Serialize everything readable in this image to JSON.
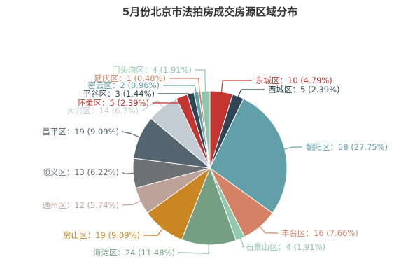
{
  "chart_data": {
    "type": "pie",
    "title": "5月份北京市法拍房成交房源区域分布",
    "slices": [
      {
        "name": "东城区",
        "value": 10,
        "percent": "4.79%",
        "color": "#c23531"
      },
      {
        "name": "西城区",
        "value": 5,
        "percent": "2.39%",
        "color": "#2f4554"
      },
      {
        "name": "朝阳区",
        "value": 58,
        "percent": "27.75%",
        "color": "#61a0a8"
      },
      {
        "name": "丰台区",
        "value": 16,
        "percent": "7.66%",
        "color": "#d48265"
      },
      {
        "name": "石景山区",
        "value": 4,
        "percent": "1.91%",
        "color": "#91c7ae"
      },
      {
        "name": "海淀区",
        "value": 24,
        "percent": "11.48%",
        "color": "#749f83"
      },
      {
        "name": "房山区",
        "value": 19,
        "percent": "9.09%",
        "color": "#ca8622"
      },
      {
        "name": "通州区",
        "value": 12,
        "percent": "5.74%",
        "color": "#bda29a"
      },
      {
        "name": "顺义区",
        "value": 13,
        "percent": "6.22%",
        "color": "#6e7074"
      },
      {
        "name": "昌平区",
        "value": 19,
        "percent": "9.09%",
        "color": "#546570"
      },
      {
        "name": "大兴区",
        "value": 14,
        "percent": "6.7%",
        "color": "#c4ccd3"
      },
      {
        "name": "怀柔区",
        "value": 5,
        "percent": "2.39%",
        "color": "#c23531"
      },
      {
        "name": "平谷区",
        "value": 3,
        "percent": "1.44%",
        "color": "#2f4554"
      },
      {
        "name": "密云区",
        "value": 2,
        "percent": "0.96%",
        "color": "#61a0a8"
      },
      {
        "name": "延庆区",
        "value": 1,
        "percent": "0.48%",
        "color": "#d48265"
      },
      {
        "name": "门头沟区",
        "value": 4,
        "percent": "1.91%",
        "color": "#91c7ae"
      }
    ]
  }
}
